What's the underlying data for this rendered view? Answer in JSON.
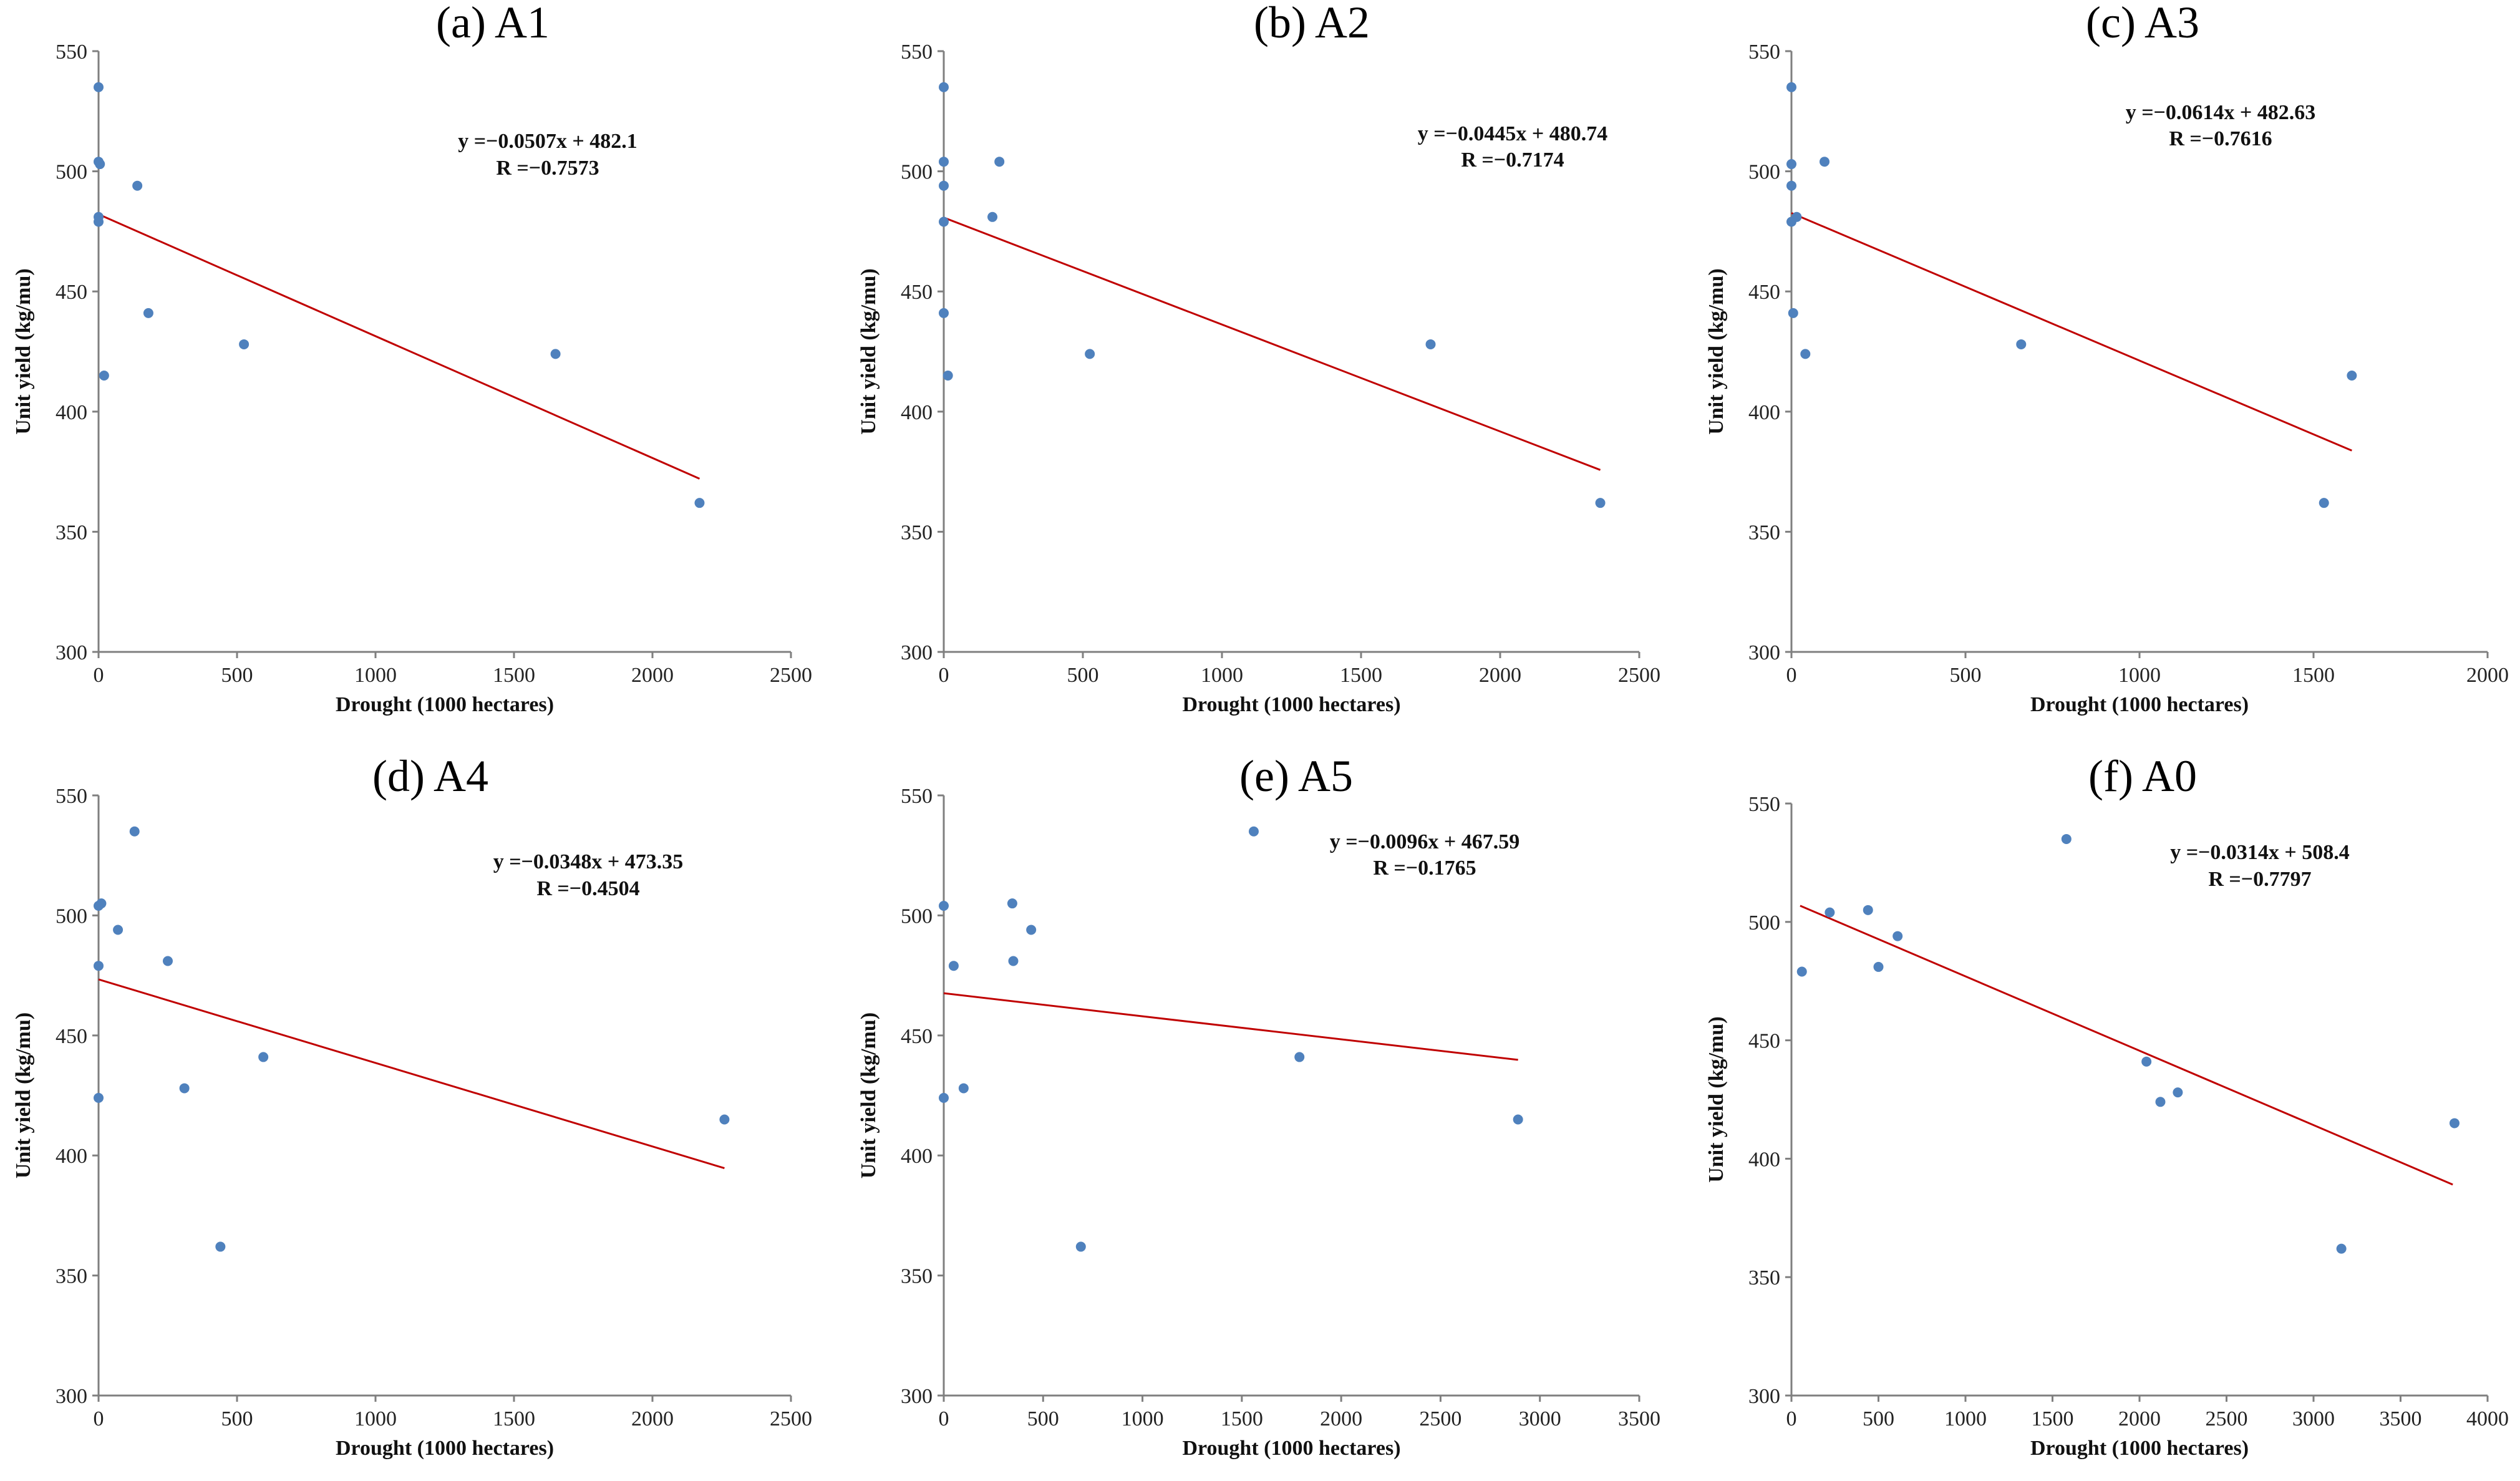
{
  "chart_data": [
    {
      "type": "scatter",
      "title": "(a) A1",
      "xlabel": "Drought (1000 hectares)",
      "ylabel": "Unit yield (kg/mu)",
      "xlim": [
        0,
        2500
      ],
      "ylim": [
        300,
        550
      ],
      "xticks": [
        "0",
        "500",
        "1000",
        "1500",
        "2000",
        "2500"
      ],
      "yticks": [
        "300",
        "350",
        "400",
        "450",
        "500",
        "550"
      ],
      "points": [
        {
          "x": 0,
          "y": 535
        },
        {
          "x": 0,
          "y": 504
        },
        {
          "x": 5,
          "y": 503
        },
        {
          "x": 0,
          "y": 481
        },
        {
          "x": 0,
          "y": 479
        },
        {
          "x": 140,
          "y": 494
        },
        {
          "x": 180,
          "y": 441
        },
        {
          "x": 20,
          "y": 415
        },
        {
          "x": 525,
          "y": 428
        },
        {
          "x": 1650,
          "y": 424
        },
        {
          "x": 2170,
          "y": 362
        }
      ],
      "fit": {
        "slope": -0.0507,
        "intercept": 482.1,
        "x_range": [
          0,
          2170
        ]
      },
      "equation": "y =−0.0507x + 482.1",
      "r_label": "R =−0.7573",
      "grid": false
    },
    {
      "type": "scatter",
      "title": "(b) A2",
      "xlabel": "Drought (1000 hectares)",
      "ylabel": "Unit yield (kg/mu)",
      "xlim": [
        0,
        2500
      ],
      "ylim": [
        300,
        550
      ],
      "xticks": [
        "0",
        "500",
        "1000",
        "1500",
        "2000",
        "2500"
      ],
      "yticks": [
        "300",
        "350",
        "400",
        "450",
        "500",
        "550"
      ],
      "points": [
        {
          "x": 0,
          "y": 535
        },
        {
          "x": 0,
          "y": 504
        },
        {
          "x": 0,
          "y": 494
        },
        {
          "x": 0,
          "y": 479
        },
        {
          "x": 0,
          "y": 441
        },
        {
          "x": 15,
          "y": 415
        },
        {
          "x": 175,
          "y": 481
        },
        {
          "x": 200,
          "y": 504
        },
        {
          "x": 525,
          "y": 424
        },
        {
          "x": 1750,
          "y": 428
        },
        {
          "x": 2360,
          "y": 362
        }
      ],
      "fit": {
        "slope": -0.0445,
        "intercept": 480.74,
        "x_range": [
          0,
          2360
        ]
      },
      "equation": "y =−0.0445x + 480.74",
      "r_label": "R =−0.7174",
      "grid": false
    },
    {
      "type": "scatter",
      "title": "(c) A3",
      "xlabel": "Drought (1000 hectares)",
      "ylabel": "Unit yield (kg/mu)",
      "xlim": [
        0,
        2000
      ],
      "ylim": [
        300,
        550
      ],
      "xticks": [
        "0",
        "500",
        "1000",
        "1500",
        "2000"
      ],
      "yticks": [
        "300",
        "350",
        "400",
        "450",
        "500",
        "550"
      ],
      "points": [
        {
          "x": 0,
          "y": 535
        },
        {
          "x": 0,
          "y": 503
        },
        {
          "x": 0,
          "y": 494
        },
        {
          "x": 0,
          "y": 479
        },
        {
          "x": 15,
          "y": 481
        },
        {
          "x": 5,
          "y": 441
        },
        {
          "x": 40,
          "y": 424
        },
        {
          "x": 95,
          "y": 504
        },
        {
          "x": 660,
          "y": 428
        },
        {
          "x": 1530,
          "y": 362
        },
        {
          "x": 1610,
          "y": 415
        }
      ],
      "fit": {
        "slope": -0.0614,
        "intercept": 482.63,
        "x_range": [
          0,
          1610
        ]
      },
      "equation": "y =−0.0614x + 482.63",
      "r_label": "R =−0.7616",
      "grid": false
    },
    {
      "type": "scatter",
      "title": "(d) A4",
      "xlabel": "Drought (1000 hectares)",
      "ylabel": "Unit yield (kg/mu)",
      "xlim": [
        0,
        2500
      ],
      "ylim": [
        300,
        550
      ],
      "xticks": [
        "0",
        "500",
        "1000",
        "1500",
        "2000",
        "2500"
      ],
      "yticks": [
        "300",
        "350",
        "400",
        "450",
        "500",
        "550"
      ],
      "points": [
        {
          "x": 0,
          "y": 504
        },
        {
          "x": 10,
          "y": 505
        },
        {
          "x": 0,
          "y": 479
        },
        {
          "x": 0,
          "y": 424
        },
        {
          "x": 70,
          "y": 494
        },
        {
          "x": 130,
          "y": 535
        },
        {
          "x": 250,
          "y": 481
        },
        {
          "x": 310,
          "y": 428
        },
        {
          "x": 440,
          "y": 362
        },
        {
          "x": 595,
          "y": 441
        },
        {
          "x": 2260,
          "y": 415
        }
      ],
      "fit": {
        "slope": -0.0348,
        "intercept": 473.35,
        "x_range": [
          0,
          2260
        ]
      },
      "equation": "y =−0.0348x + 473.35",
      "r_label": "R =−0.4504",
      "grid": false
    },
    {
      "type": "scatter",
      "title": "(e) A5",
      "xlabel": "Drought (1000 hectares)",
      "ylabel": "Unit yield (kg/mu)",
      "xlim": [
        0,
        3500
      ],
      "ylim": [
        300,
        550
      ],
      "xticks": [
        "0",
        "500",
        "1000",
        "1500",
        "2000",
        "2500",
        "3000",
        "3500"
      ],
      "yticks": [
        "300",
        "350",
        "400",
        "450",
        "500",
        "550"
      ],
      "points": [
        {
          "x": 0,
          "y": 504
        },
        {
          "x": 50,
          "y": 479
        },
        {
          "x": 0,
          "y": 424
        },
        {
          "x": 100,
          "y": 428
        },
        {
          "x": 345,
          "y": 505
        },
        {
          "x": 350,
          "y": 481
        },
        {
          "x": 440,
          "y": 494
        },
        {
          "x": 690,
          "y": 362
        },
        {
          "x": 1560,
          "y": 535
        },
        {
          "x": 1790,
          "y": 441
        },
        {
          "x": 2890,
          "y": 415
        }
      ],
      "fit": {
        "slope": -0.0096,
        "intercept": 467.59,
        "x_range": [
          0,
          2890
        ]
      },
      "equation": "y =−0.0096x + 467.59",
      "r_label": "R =−0.1765",
      "grid": false
    },
    {
      "type": "scatter",
      "title": "(f) A0",
      "xlabel": "Drought (1000 hectares)",
      "ylabel": "Unit yield (kg/mu)",
      "xlim": [
        0,
        4000
      ],
      "ylim": [
        300,
        550
      ],
      "xticks": [
        "0",
        "500",
        "1000",
        "1500",
        "2000",
        "2500",
        "3000",
        "3500",
        "4000"
      ],
      "yticks": [
        "300",
        "350",
        "400",
        "450",
        "500",
        "550"
      ],
      "points": [
        {
          "x": 60,
          "y": 479
        },
        {
          "x": 220,
          "y": 504
        },
        {
          "x": 440,
          "y": 505
        },
        {
          "x": 500,
          "y": 481
        },
        {
          "x": 610,
          "y": 494
        },
        {
          "x": 1580,
          "y": 535
        },
        {
          "x": 2040,
          "y": 441
        },
        {
          "x": 2120,
          "y": 424
        },
        {
          "x": 2220,
          "y": 428
        },
        {
          "x": 3160,
          "y": 362
        },
        {
          "x": 3810,
          "y": 415
        }
      ],
      "fit": {
        "slope": -0.0314,
        "intercept": 508.4,
        "x_range": [
          50,
          3800
        ]
      },
      "equation": "y =−0.0314x + 508.4",
      "r_label": "R =−0.7797",
      "grid": false
    }
  ],
  "colors": {
    "point": "#4f81bd",
    "fit_line": "#c00000",
    "axis": "#7f7f7f",
    "text": "#000000"
  }
}
